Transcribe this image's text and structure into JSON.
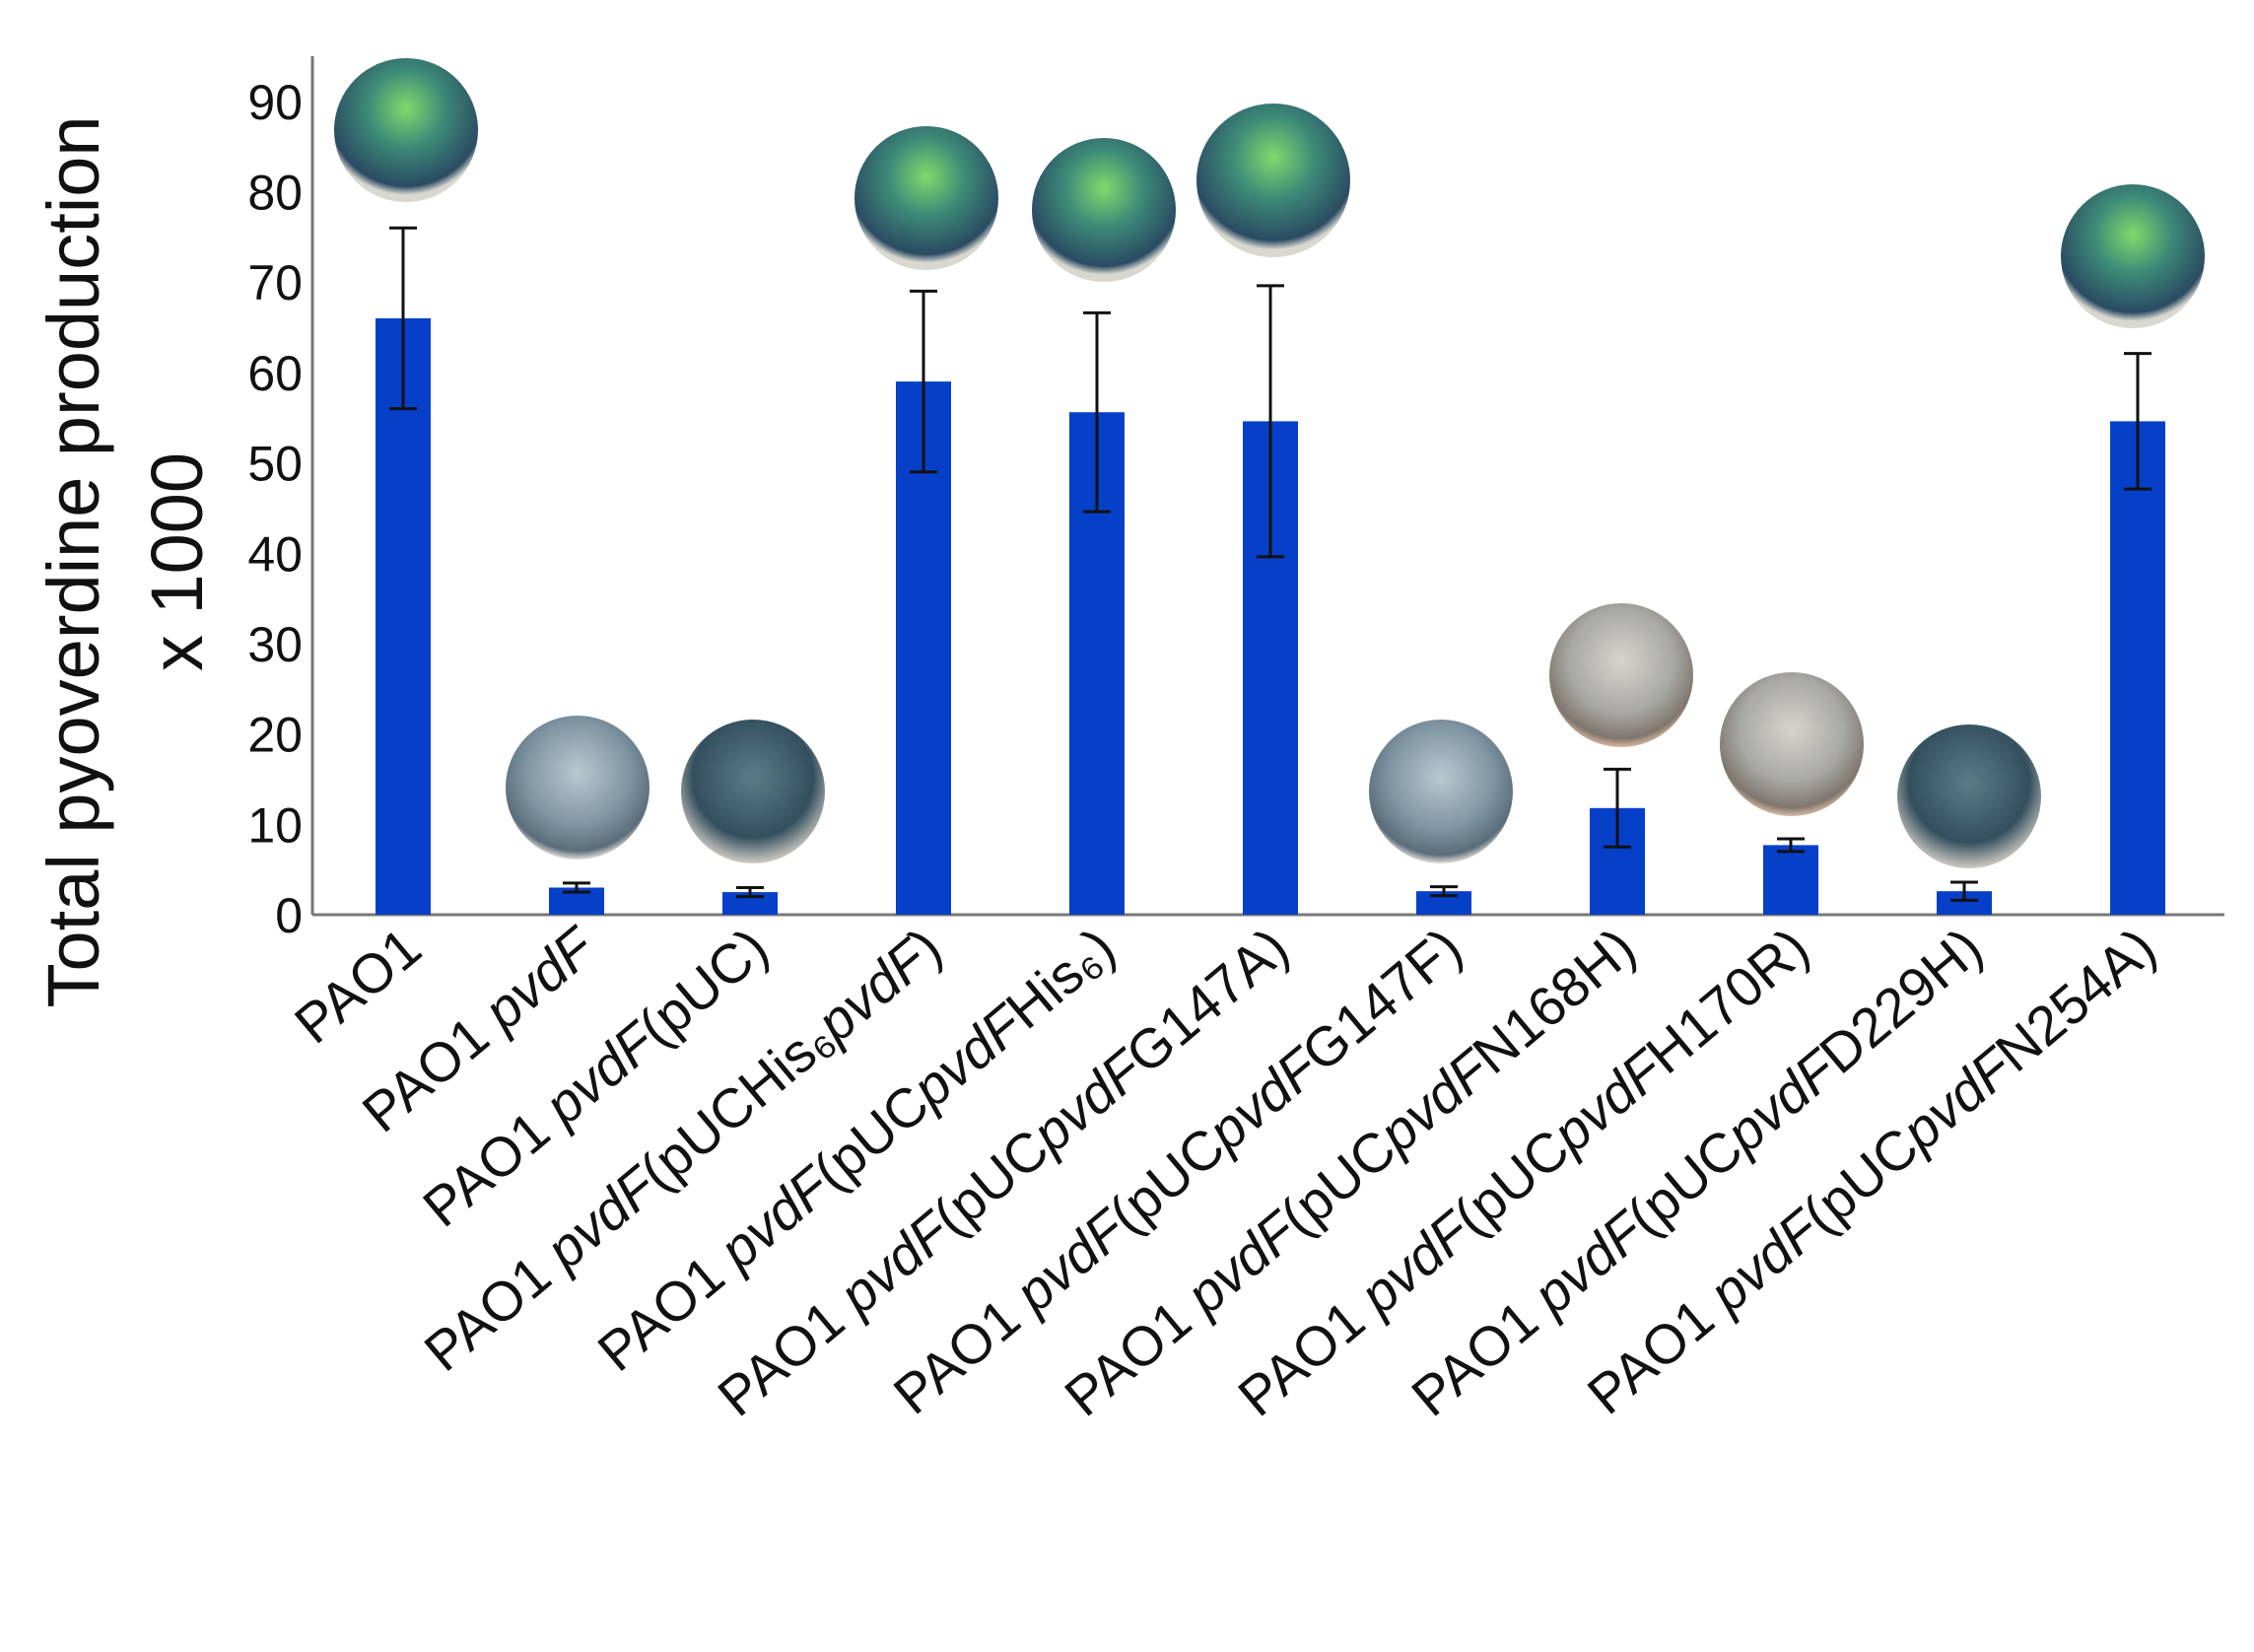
{
  "chart_data": {
    "type": "bar",
    "ylabel": [
      "Total pyoverdine production",
      "x 1000"
    ],
    "categories": [
      "PAO1",
      "PAO1 pvdF",
      "PAO1 pvdF(pUC)",
      "PAO1 pvdF(pUCHis₆pvdF)",
      "PAO1 pvdF(pUCpvdFHis₆)",
      "PAO1 pvdF(pUCpvdFG147A)",
      "PAO1 pvdF(pUCpvdFG147F)",
      "PAO1 pvdF(pUCpvdFN168H)",
      "PAO1 pvdF(pUCpvdFH170R)",
      "PAO1 pvdF(pUCpvdFD229H)",
      "PAO1 pvdF(pUCpvdFN254A)"
    ],
    "values": [
      66,
      3,
      2.5,
      59,
      55.6,
      54.6,
      2.6,
      11.8,
      7.7,
      2.6,
      54.6
    ],
    "errors": [
      10,
      0.5,
      0.5,
      10,
      11,
      15,
      0.5,
      4.3,
      0.7,
      1,
      7.5
    ],
    "color": "#0740c8",
    "ylim": [
      0,
      95
    ],
    "yticks": [
      0,
      10,
      20,
      30,
      40,
      50,
      60,
      70,
      80,
      90
    ],
    "grid": false
  }
}
